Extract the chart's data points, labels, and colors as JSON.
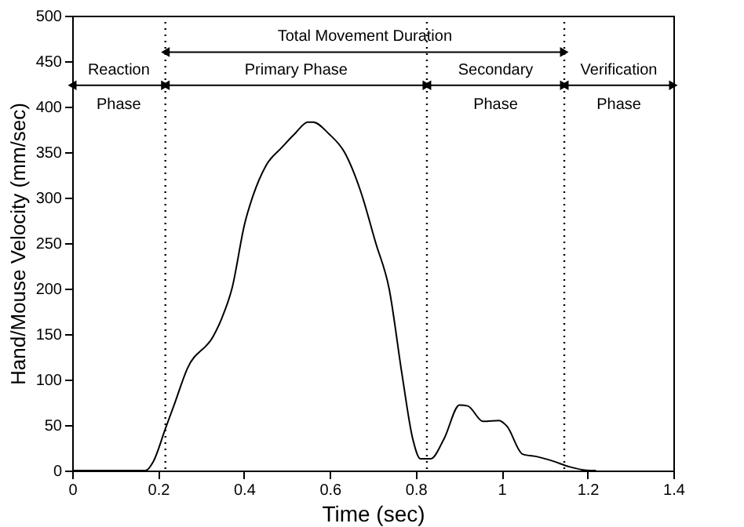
{
  "chart_data": {
    "type": "line",
    "xlabel": "Time (sec)",
    "ylabel": "Hand/Mouse Velocity (mm/sec)",
    "x": [
      0,
      0.171,
      0.189,
      0.217,
      0.238,
      0.268,
      0.329,
      0.348,
      0.372,
      0.402,
      0.421,
      0.451,
      0.488,
      0.518,
      0.549,
      0.561,
      0.598,
      0.634,
      0.671,
      0.707,
      0.738,
      0.768,
      0.793,
      0.811,
      0.835,
      0.866,
      0.902,
      0.921,
      0.957,
      0.994,
      1.012,
      1.049,
      1.085,
      1.122,
      1.159,
      1.207,
      1.22
    ],
    "series": [
      {
        "color": "#000000",
        "values": [
          0,
          0,
          10,
          46,
          73,
          112,
          148,
          167,
          200,
          272,
          302,
          335,
          355,
          370,
          383,
          383,
          370,
          350,
          308,
          250,
          200,
          106,
          35,
          13,
          13,
          35,
          72,
          71,
          54,
          55,
          49,
          18,
          15,
          10,
          4,
          0,
          0
        ]
      }
    ],
    "xlim": [
      0,
      1.4
    ],
    "xticks": [
      0,
      0.2,
      0.4,
      0.6,
      0.8,
      1,
      1.2,
      1.4
    ],
    "ylim": [
      0,
      500
    ],
    "yticks": [
      0,
      50,
      100,
      150,
      200,
      250,
      300,
      350,
      400,
      450,
      500
    ],
    "grid": false,
    "line_style": "solid",
    "ref_lines": [
      {
        "axis": "x",
        "value": 0.217,
        "line_style": "dotted"
      },
      {
        "axis": "x",
        "value": 0.826,
        "line_style": "dotted"
      },
      {
        "axis": "x",
        "value": 1.146,
        "line_style": "dotted"
      }
    ],
    "annotations": [
      "Total Movement Duration",
      "Reaction Phase",
      "Primary Phase",
      "Secondary Phase",
      "Verification Phase"
    ]
  }
}
